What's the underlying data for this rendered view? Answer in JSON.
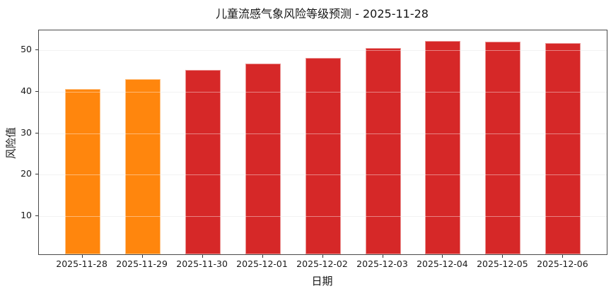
{
  "chart_data": {
    "type": "bar",
    "title": "儿童流感气象风险等级预测 - 2025-11-28",
    "xlabel": "日期",
    "ylabel": "风险值",
    "categories": [
      "2025-11-28",
      "2025-11-29",
      "2025-11-30",
      "2025-12-01",
      "2025-12-02",
      "2025-12-03",
      "2025-12-04",
      "2025-12-05",
      "2025-12-06"
    ],
    "values": [
      40.6,
      43.0,
      45.3,
      46.8,
      48.1,
      50.6,
      52.3,
      52.0,
      51.7
    ],
    "bar_colors": [
      "#ff860d",
      "#ff860d",
      "#d62828",
      "#d62828",
      "#d62828",
      "#d62828",
      "#d62828",
      "#d62828",
      "#d62828"
    ],
    "colors": {
      "orange_risk": "#ff860d",
      "red_risk": "#d62828"
    },
    "yticks": [
      10,
      20,
      30,
      40,
      50
    ],
    "ylim": [
      0.8,
      54.8
    ],
    "grid": "horizontal",
    "legend": "none"
  }
}
